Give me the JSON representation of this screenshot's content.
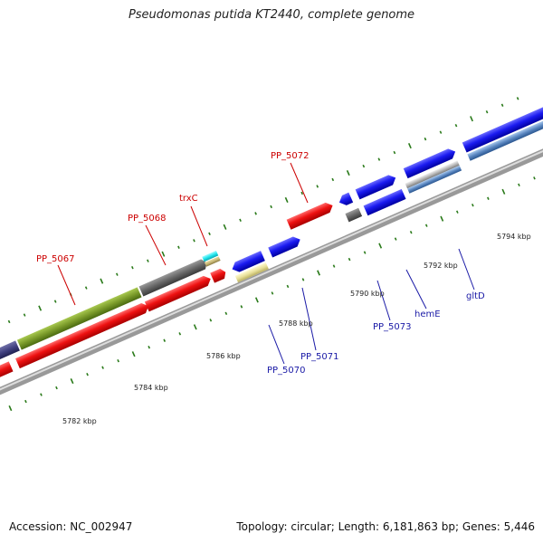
{
  "title": "Pseudomonas putida KT2440, complete genome",
  "accession": "Accession: NC_002947",
  "topology": "Topology: circular; Length: 6,181,863 bp; Genes: 5,446",
  "ticks_kbp": [
    "5782 kbp",
    "5784 kbp",
    "5786 kbp",
    "5788 kbp",
    "5790 kbp",
    "5792 kbp",
    "5794 kbp"
  ],
  "gene_labels": {
    "pp5067": "PP_5067",
    "pp5068": "PP_5068",
    "trxc": "trxC",
    "pp5072": "PP_5072",
    "pp5070": "PP_5070",
    "pp5071": "PP_5071",
    "pp5073": "PP_5073",
    "heme": "hemE",
    "gltd": "gltD"
  },
  "colors": {
    "forward_gene": "#ee1111",
    "reverse_gene": "#1a1af0",
    "olive_gene": "#7a9a2a",
    "gray_gene": "#666666",
    "cyan_gene": "#22e6ee",
    "khaki_gene": "#e8e09a",
    "steel_gene": "#5a86c0",
    "backbone": "#999999",
    "tick": "#2a7a1a",
    "red_label": "#cc0000",
    "blue_label": "#1a1aa6"
  }
}
